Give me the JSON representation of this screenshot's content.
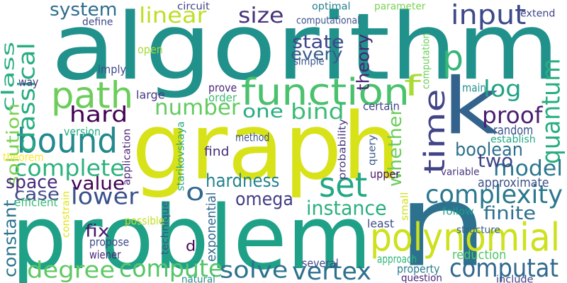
{
  "words": [
    {
      "text": "algorithm",
      "color": "#21918c"
    },
    {
      "text": "graph",
      "color": "#d8e219"
    },
    {
      "text": "problem",
      "color": "#1fa187"
    },
    {
      "text": "n",
      "color": "#2c728e"
    },
    {
      "text": "k",
      "color": "#33638d"
    },
    {
      "text": "p",
      "color": "#35b779"
    },
    {
      "text": "polynomial",
      "color": "#cde11d"
    },
    {
      "text": "function",
      "color": "#4ac16d"
    },
    {
      "text": "path",
      "color": "#6ccd5a"
    },
    {
      "text": "bound",
      "color": "#23898e"
    },
    {
      "text": "time",
      "color": "#414487"
    },
    {
      "text": "complexity",
      "color": "#2a788e"
    },
    {
      "text": "quantum",
      "color": "#28ae80"
    },
    {
      "text": "classical",
      "color": "#26ad81"
    },
    {
      "text": "input",
      "color": "#3e4989"
    },
    {
      "text": "set",
      "color": "#22a884"
    },
    {
      "text": "compute",
      "color": "#54c568"
    },
    {
      "text": "computat",
      "color": "#31688e"
    },
    {
      "text": "degree",
      "color": "#5ec962"
    },
    {
      "text": "vertex",
      "color": "#2d708e"
    },
    {
      "text": "solve",
      "color": "#2c738e"
    },
    {
      "text": "lower",
      "color": "#3b528b"
    },
    {
      "text": "complete",
      "color": "#2db27d"
    },
    {
      "text": "hard",
      "color": "#440154"
    },
    {
      "text": "number",
      "color": "#63cb5f"
    },
    {
      "text": "linear",
      "color": "#bddf26"
    },
    {
      "text": "size",
      "color": "#46337e"
    },
    {
      "text": "class",
      "color": "#29af7f"
    },
    {
      "text": "system",
      "color": "#2e6e8e"
    },
    {
      "text": "log",
      "color": "#20a386"
    },
    {
      "text": "proof",
      "color": "#481f70"
    },
    {
      "text": "model",
      "color": "#2a778e"
    },
    {
      "text": "bind",
      "color": "#3bbb75"
    },
    {
      "text": "one",
      "color": "#27ad81"
    },
    {
      "text": "f",
      "color": "#a8db34"
    },
    {
      "text": "o",
      "color": "#31688e"
    },
    {
      "text": "state",
      "color": "#3f4889"
    },
    {
      "text": "every",
      "color": "#365d8d"
    },
    {
      "text": "theory",
      "color": "#482576"
    },
    {
      "text": "solution",
      "color": "#7ad151"
    },
    {
      "text": "constant",
      "color": "#2c738e"
    },
    {
      "text": "space",
      "color": "#472c7a"
    },
    {
      "text": "case",
      "color": "#3e4a89"
    },
    {
      "text": "value",
      "color": "#440154"
    },
    {
      "text": "hardness",
      "color": "#25838e"
    },
    {
      "text": "omega",
      "color": "#433e85"
    },
    {
      "text": "instance",
      "color": "#2ab07f"
    },
    {
      "text": "whether",
      "color": "#6ccd5a"
    },
    {
      "text": "boolean",
      "color": "#2d708e"
    },
    {
      "text": "two",
      "color": "#404588"
    },
    {
      "text": "finite",
      "color": "#2e6e8e"
    },
    {
      "text": "random",
      "color": "#3b528b"
    },
    {
      "text": "fix",
      "color": "#481a6c"
    },
    {
      "text": "approximate",
      "color": "#3b528b"
    },
    {
      "text": "variable",
      "color": "#46327e"
    },
    {
      "text": "reduction",
      "color": "#52c569"
    },
    {
      "text": "structure",
      "color": "#34618d"
    },
    {
      "text": "follow",
      "color": "#1e9c89"
    },
    {
      "text": "least",
      "color": "#3d4d8a"
    },
    {
      "text": "small",
      "color": "#d0e11c"
    },
    {
      "text": "upper",
      "color": "#471365"
    },
    {
      "text": "query",
      "color": "#39568c"
    },
    {
      "text": "probability",
      "color": "#453781"
    },
    {
      "text": "computation",
      "color": "#6ccd5a"
    },
    {
      "text": "exponential",
      "color": "#31688e"
    },
    {
      "text": "starikovskaya",
      "color": "#20a486"
    },
    {
      "text": "application",
      "color": "#482475"
    },
    {
      "text": "technique",
      "color": "#3a548c"
    },
    {
      "text": "constrain",
      "color": "#e2e418"
    },
    {
      "text": "d",
      "color": "#440154"
    },
    {
      "text": "wiener",
      "color": "#482878"
    },
    {
      "text": "approach",
      "color": "#31b57b"
    },
    {
      "text": "property",
      "color": "#287c8e"
    },
    {
      "text": "question",
      "color": "#482475"
    },
    {
      "text": "several",
      "color": "#3e4a89"
    },
    {
      "text": "include",
      "color": "#414487"
    },
    {
      "text": "natural",
      "color": "#21918c"
    },
    {
      "text": "possible",
      "color": "#c2df23"
    },
    {
      "text": "efficient",
      "color": "#38b977"
    },
    {
      "text": "theorem",
      "color": "#fde725"
    },
    {
      "text": "version",
      "color": "#25ac82"
    },
    {
      "text": "propose",
      "color": "#3e4989"
    },
    {
      "text": "large",
      "color": "#453882"
    },
    {
      "text": "method",
      "color": "#3b528b"
    },
    {
      "text": "find",
      "color": "#472d7b"
    },
    {
      "text": "establish",
      "color": "#22a785"
    },
    {
      "text": "certain",
      "color": "#414487"
    },
    {
      "text": "order",
      "color": "#3dbc74"
    },
    {
      "text": "prove",
      "color": "#482878"
    },
    {
      "text": "main",
      "color": "#21908d"
    },
    {
      "text": "way",
      "color": "#46327e"
    },
    {
      "text": "imply",
      "color": "#3e4989"
    },
    {
      "text": "open",
      "color": "#a5db36"
    },
    {
      "text": "define",
      "color": "#404588"
    },
    {
      "text": "simple",
      "color": "#3b528b"
    },
    {
      "text": "circuit",
      "color": "#414487"
    },
    {
      "text": "computational",
      "color": "#3b528b"
    },
    {
      "text": "optimal",
      "color": "#27808e"
    },
    {
      "text": "parameter",
      "color": "#7ad151"
    },
    {
      "text": "extend",
      "color": "#404588"
    },
    {
      "text": "exponent",
      "color": "#3a548c"
    },
    {
      "text": "e",
      "color": "#21a685"
    }
  ]
}
